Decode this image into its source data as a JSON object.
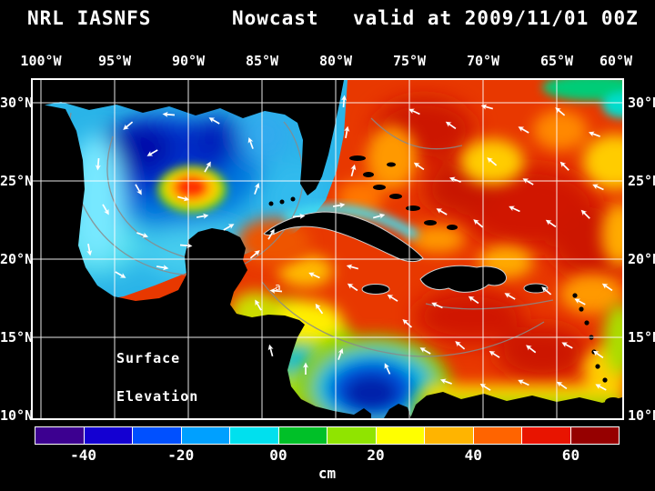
{
  "header": {
    "left": "NRL IASNFS",
    "center": "Nowcast",
    "right": "valid at 2009/11/01 00Z"
  },
  "map": {
    "top_axis": [
      "100°W",
      "95°W",
      "90°W",
      "85°W",
      "80°W",
      "75°W",
      "70°W",
      "65°W",
      "60°W"
    ],
    "lat_axis": [
      "30°N",
      "25°N",
      "20°N",
      "15°N",
      "10°N"
    ],
    "annotation": {
      "line1": "Surface",
      "line2": "Elevation"
    },
    "contour_label": "a",
    "vectors": [
      [
        150,
        38,
        185
      ],
      [
        105,
        50,
        140
      ],
      [
        72,
        92,
        95
      ],
      [
        80,
        142,
        60
      ],
      [
        120,
        170,
        20
      ],
      [
        168,
        182,
        5
      ],
      [
        215,
        162,
        330
      ],
      [
        246,
        120,
        290
      ],
      [
        240,
        70,
        250
      ],
      [
        200,
        45,
        210
      ],
      [
        132,
        80,
        150
      ],
      [
        165,
        130,
        15
      ],
      [
        192,
        96,
        300
      ],
      [
        116,
        120,
        60
      ],
      [
        62,
        186,
        80
      ],
      [
        96,
        214,
        30
      ],
      [
        142,
        206,
        10
      ],
      [
        186,
        150,
        350
      ],
      [
        244,
        192,
        320
      ],
      [
        262,
        170,
        300
      ],
      [
        292,
        150,
        355
      ],
      [
        336,
        138,
        350
      ],
      [
        380,
        150,
        345
      ],
      [
        345,
        58,
        280
      ],
      [
        352,
        100,
        285
      ],
      [
        342,
        24,
        275
      ],
      [
        420,
        35,
        205
      ],
      [
        460,
        50,
        215
      ],
      [
        500,
        30,
        195
      ],
      [
        540,
        55,
        210
      ],
      [
        580,
        35,
        220
      ],
      [
        618,
        60,
        200
      ],
      [
        425,
        95,
        215
      ],
      [
        465,
        110,
        200
      ],
      [
        505,
        90,
        220
      ],
      [
        545,
        112,
        210
      ],
      [
        585,
        95,
        225
      ],
      [
        622,
        118,
        205
      ],
      [
        450,
        145,
        210
      ],
      [
        490,
        158,
        220
      ],
      [
        530,
        142,
        205
      ],
      [
        570,
        158,
        215
      ],
      [
        608,
        148,
        225
      ],
      [
        445,
        248,
        205
      ],
      [
        485,
        242,
        215
      ],
      [
        525,
        238,
        210
      ],
      [
        565,
        232,
        220
      ],
      [
        602,
        244,
        208
      ],
      [
        632,
        228,
        215
      ],
      [
        432,
        298,
        210
      ],
      [
        470,
        292,
        220
      ],
      [
        508,
        302,
        212
      ],
      [
        548,
        296,
        218
      ],
      [
        588,
        292,
        208
      ],
      [
        622,
        302,
        215
      ],
      [
        455,
        332,
        200
      ],
      [
        498,
        338,
        212
      ],
      [
        540,
        333,
        205
      ],
      [
        582,
        336,
        215
      ],
      [
        625,
        338,
        208
      ],
      [
        262,
        298,
        255
      ],
      [
        300,
        318,
        270
      ],
      [
        338,
        302,
        290
      ],
      [
        315,
        252,
        235
      ],
      [
        352,
        228,
        215
      ],
      [
        390,
        318,
        245
      ],
      [
        412,
        268,
        222
      ],
      [
        310,
        215,
        205
      ],
      [
        352,
        206,
        195
      ],
      [
        396,
        240,
        212
      ],
      [
        268,
        232,
        185
      ],
      [
        248,
        248,
        240
      ]
    ]
  },
  "colorbar": {
    "units": "cm",
    "ticks": [
      {
        "label": "-40",
        "pos": 8.33
      },
      {
        "label": "-20",
        "pos": 25
      },
      {
        "label": "00",
        "pos": 41.67
      },
      {
        "label": "20",
        "pos": 58.33
      },
      {
        "label": "40",
        "pos": 75
      },
      {
        "label": "60",
        "pos": 91.67
      }
    ],
    "segments": [
      "#3c0090",
      "#1400d2",
      "#0050ff",
      "#00a0ff",
      "#00e0ee",
      "#00c028",
      "#90e400",
      "#ffff00",
      "#ffb400",
      "#ff6400",
      "#e81400",
      "#960000"
    ]
  }
}
